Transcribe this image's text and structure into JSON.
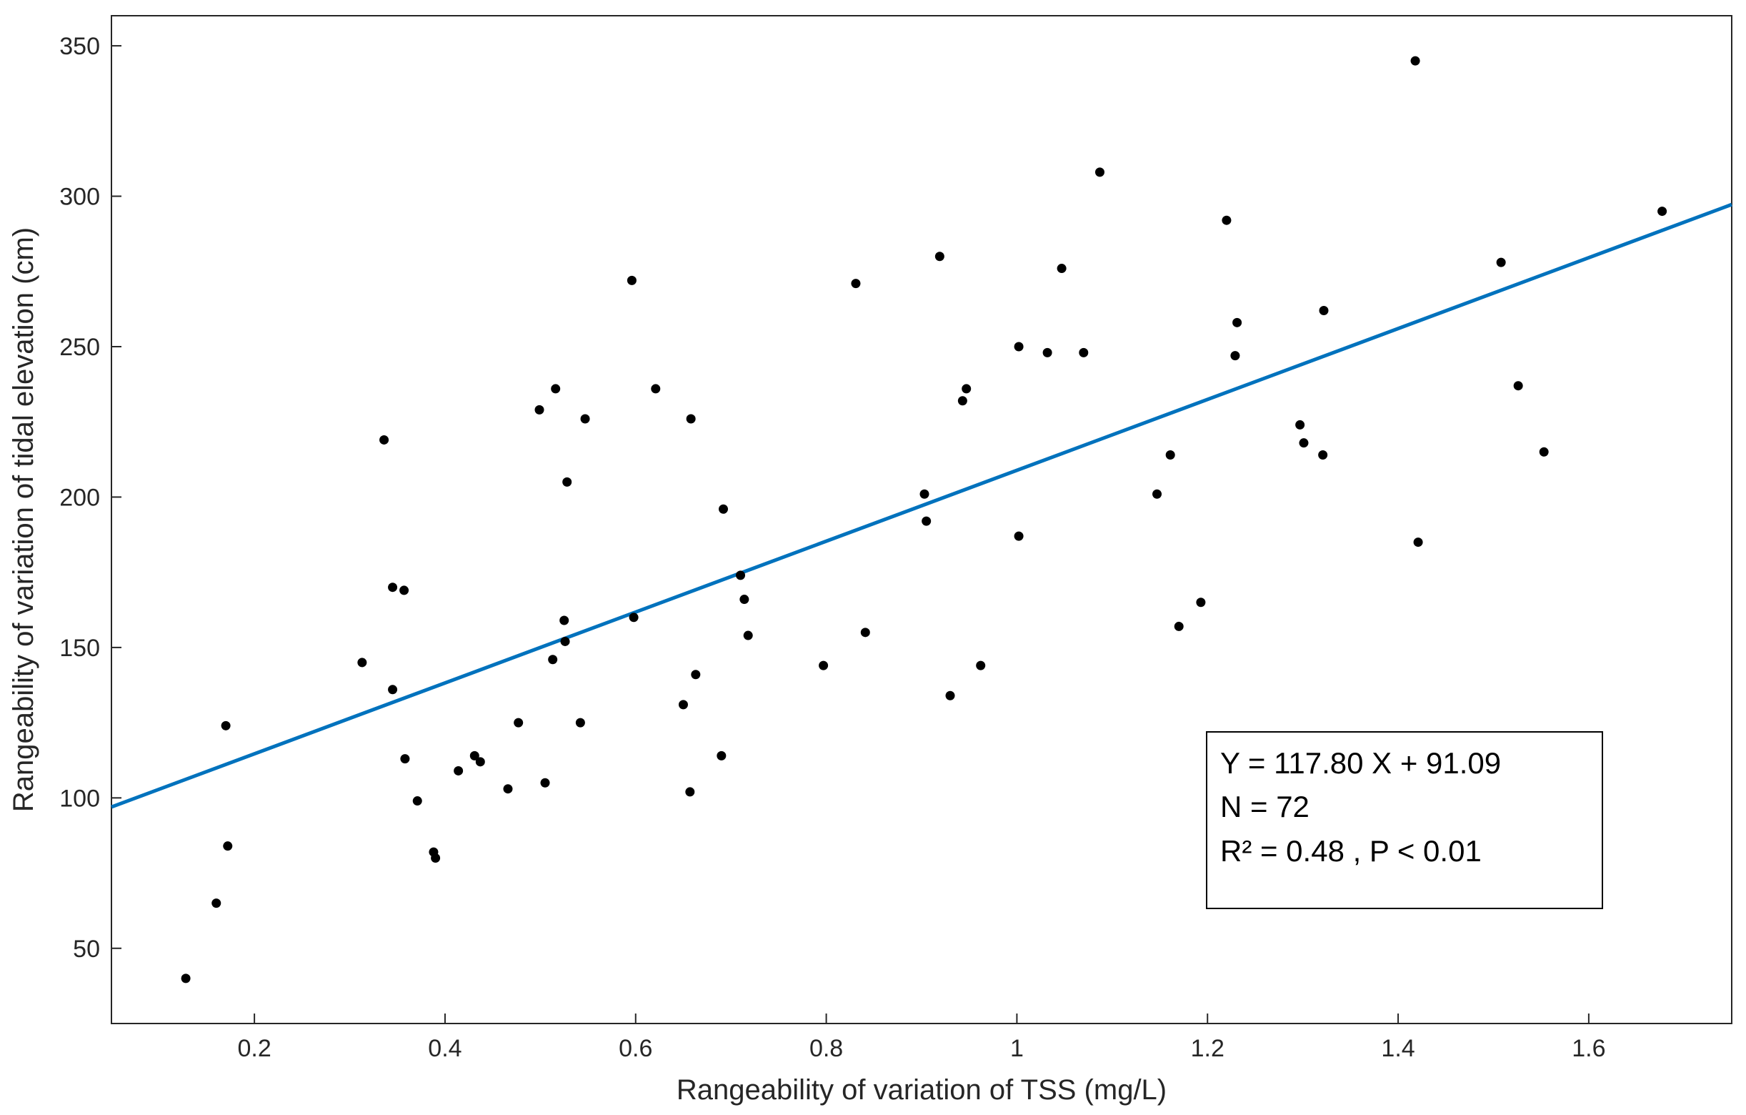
{
  "chart_data": {
    "type": "scatter",
    "title": "",
    "xlabel": "Rangeability of variation of TSS (mg/L)",
    "ylabel": "Rangeability of variation of tidal elevation (cm)",
    "xlim": [
      0.05,
      1.75
    ],
    "ylim": [
      25,
      360
    ],
    "xticks": [
      0.2,
      0.4,
      0.6,
      0.8,
      1,
      1.2,
      1.4,
      1.6
    ],
    "xtick_labels": [
      "0.2",
      "0.4",
      "0.6",
      "0.8",
      "1",
      "1.2",
      "1.4",
      "1.6"
    ],
    "yticks": [
      50,
      100,
      150,
      200,
      250,
      300,
      350
    ],
    "ytick_labels": [
      "50",
      "100",
      "150",
      "200",
      "250",
      "300",
      "350"
    ],
    "grid": false,
    "marker_color": "#000000",
    "fit_color": "#0072BD",
    "fit": {
      "slope": 117.8,
      "intercept": 91.09
    },
    "annotation": [
      "Y = 117.80 X + 91.09",
      "N = 72",
      "R² = 0.48 , P < 0.01"
    ],
    "points": [
      {
        "x": 0.128,
        "y": 40
      },
      {
        "x": 0.16,
        "y": 65
      },
      {
        "x": 0.17,
        "y": 124
      },
      {
        "x": 0.172,
        "y": 84
      },
      {
        "x": 0.313,
        "y": 145
      },
      {
        "x": 0.336,
        "y": 219
      },
      {
        "x": 0.345,
        "y": 170
      },
      {
        "x": 0.345,
        "y": 136
      },
      {
        "x": 0.357,
        "y": 169
      },
      {
        "x": 0.358,
        "y": 113
      },
      {
        "x": 0.371,
        "y": 99
      },
      {
        "x": 0.388,
        "y": 82
      },
      {
        "x": 0.39,
        "y": 80
      },
      {
        "x": 0.414,
        "y": 109
      },
      {
        "x": 0.431,
        "y": 114
      },
      {
        "x": 0.437,
        "y": 112
      },
      {
        "x": 0.466,
        "y": 103
      },
      {
        "x": 0.477,
        "y": 125
      },
      {
        "x": 0.499,
        "y": 229
      },
      {
        "x": 0.505,
        "y": 105
      },
      {
        "x": 0.513,
        "y": 146
      },
      {
        "x": 0.516,
        "y": 236
      },
      {
        "x": 0.525,
        "y": 159
      },
      {
        "x": 0.526,
        "y": 152
      },
      {
        "x": 0.528,
        "y": 205
      },
      {
        "x": 0.542,
        "y": 125
      },
      {
        "x": 0.547,
        "y": 226
      },
      {
        "x": 0.596,
        "y": 272
      },
      {
        "x": 0.598,
        "y": 160
      },
      {
        "x": 0.621,
        "y": 236
      },
      {
        "x": 0.65,
        "y": 131
      },
      {
        "x": 0.657,
        "y": 102
      },
      {
        "x": 0.658,
        "y": 226
      },
      {
        "x": 0.663,
        "y": 141
      },
      {
        "x": 0.69,
        "y": 114
      },
      {
        "x": 0.692,
        "y": 196
      },
      {
        "x": 0.71,
        "y": 174
      },
      {
        "x": 0.714,
        "y": 166
      },
      {
        "x": 0.718,
        "y": 154
      },
      {
        "x": 0.797,
        "y": 144
      },
      {
        "x": 0.831,
        "y": 271
      },
      {
        "x": 0.841,
        "y": 155
      },
      {
        "x": 0.903,
        "y": 201
      },
      {
        "x": 0.905,
        "y": 192
      },
      {
        "x": 0.919,
        "y": 280
      },
      {
        "x": 0.93,
        "y": 134
      },
      {
        "x": 0.943,
        "y": 232
      },
      {
        "x": 0.947,
        "y": 236
      },
      {
        "x": 0.962,
        "y": 144
      },
      {
        "x": 1.002,
        "y": 250
      },
      {
        "x": 1.002,
        "y": 187
      },
      {
        "x": 1.032,
        "y": 248
      },
      {
        "x": 1.047,
        "y": 276
      },
      {
        "x": 1.07,
        "y": 248
      },
      {
        "x": 1.087,
        "y": 308
      },
      {
        "x": 1.147,
        "y": 201
      },
      {
        "x": 1.161,
        "y": 214
      },
      {
        "x": 1.17,
        "y": 157
      },
      {
        "x": 1.193,
        "y": 165
      },
      {
        "x": 1.22,
        "y": 292
      },
      {
        "x": 1.229,
        "y": 247
      },
      {
        "x": 1.231,
        "y": 258
      },
      {
        "x": 1.297,
        "y": 224
      },
      {
        "x": 1.301,
        "y": 218
      },
      {
        "x": 1.321,
        "y": 214
      },
      {
        "x": 1.322,
        "y": 262
      },
      {
        "x": 1.418,
        "y": 345
      },
      {
        "x": 1.421,
        "y": 185
      },
      {
        "x": 1.508,
        "y": 278
      },
      {
        "x": 1.526,
        "y": 237
      },
      {
        "x": 1.553,
        "y": 215
      },
      {
        "x": 1.677,
        "y": 295
      }
    ]
  }
}
